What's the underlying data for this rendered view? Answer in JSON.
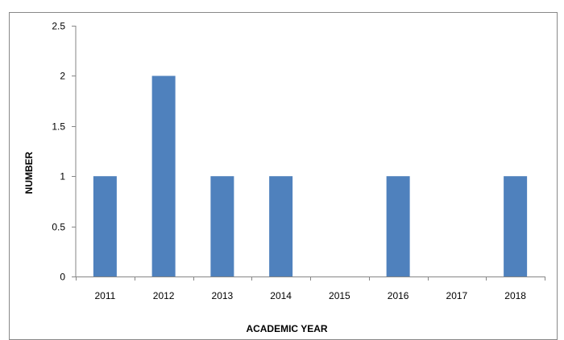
{
  "chart_data": {
    "type": "bar",
    "title": "",
    "xlabel": "ACADEMIC YEAR",
    "ylabel": "NUMBER",
    "categories": [
      "2011",
      "2012",
      "2013",
      "2014",
      "2015",
      "2016",
      "2017",
      "2018"
    ],
    "values": [
      1,
      2,
      1,
      1,
      0,
      1,
      0,
      1
    ],
    "ylim": [
      0,
      2.5
    ],
    "yticks": [
      "0",
      "0.5",
      "1",
      "1.5",
      "2",
      "2.5"
    ],
    "grid": false,
    "legend": "none",
    "colors": {
      "bar": "#4f81bd",
      "axis": "#868686"
    }
  }
}
